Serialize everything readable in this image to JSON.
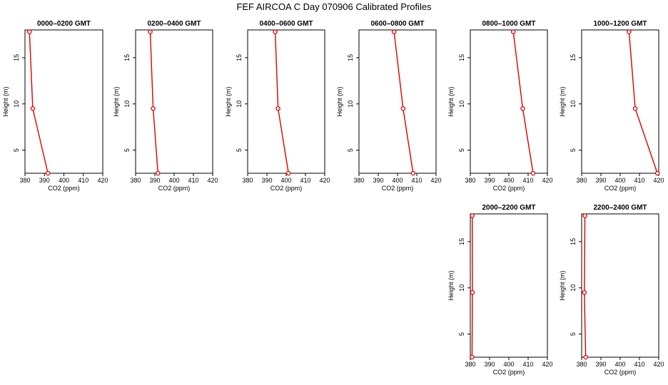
{
  "figure": {
    "title": "FEF AIRCOA C  Day 070906  Calibrated Profiles"
  },
  "chart_data": [
    {
      "type": "line",
      "title": "0000–0200 GMT",
      "xlabel": "CO2 (ppm)",
      "ylabel": "Height (m)",
      "xlim": [
        380,
        420
      ],
      "ylim": [
        2.5,
        18
      ],
      "xticks": [
        380,
        390,
        400,
        410,
        420
      ],
      "yticks": [
        5,
        10,
        15
      ],
      "grid": false,
      "series": [
        {
          "values": [
            [
              382.3,
              17.8
            ],
            [
              384.0,
              9.5
            ],
            [
              391.8,
              2.5
            ]
          ],
          "color": "#dd0000"
        }
      ]
    },
    {
      "type": "line",
      "title": "0200–0400 GMT",
      "xlabel": "CO2 (ppm)",
      "ylabel": "Height (m)",
      "xlim": [
        380,
        420
      ],
      "ylim": [
        2.5,
        18
      ],
      "xticks": [
        380,
        390,
        400,
        410,
        420
      ],
      "yticks": [
        5,
        10,
        15
      ],
      "grid": false,
      "series": [
        {
          "values": [
            [
              387.6,
              17.8
            ],
            [
              389.1,
              9.5
            ],
            [
              391.6,
              2.5
            ]
          ],
          "color": "#dd0000"
        }
      ]
    },
    {
      "type": "line",
      "title": "0400–0600 GMT",
      "xlabel": "CO2 (ppm)",
      "ylabel": "Height (m)",
      "xlim": [
        380,
        420
      ],
      "ylim": [
        2.5,
        18
      ],
      "xticks": [
        380,
        390,
        400,
        410,
        420
      ],
      "yticks": [
        5,
        10,
        15
      ],
      "grid": false,
      "series": [
        {
          "values": [
            [
              394.3,
              17.8
            ],
            [
              395.8,
              9.5
            ],
            [
              401.2,
              2.5
            ]
          ],
          "color": "#dd0000"
        }
      ]
    },
    {
      "type": "line",
      "title": "0600–0800 GMT",
      "xlabel": "CO2 (ppm)",
      "ylabel": "Height (m)",
      "xlim": [
        380,
        420
      ],
      "ylim": [
        2.5,
        18
      ],
      "xticks": [
        380,
        390,
        400,
        410,
        420
      ],
      "yticks": [
        5,
        10,
        15
      ],
      "grid": false,
      "series": [
        {
          "values": [
            [
              398.2,
              17.8
            ],
            [
              402.9,
              9.5
            ],
            [
              408.1,
              2.5
            ]
          ],
          "color": "#dd0000"
        }
      ]
    },
    {
      "type": "line",
      "title": "0800–1000 GMT",
      "xlabel": "CO2 (ppm)",
      "ylabel": "Height (m)",
      "xlim": [
        380,
        420
      ],
      "ylim": [
        2.5,
        18
      ],
      "xticks": [
        380,
        390,
        400,
        410,
        420
      ],
      "yticks": [
        5,
        10,
        15
      ],
      "grid": false,
      "series": [
        {
          "values": [
            [
              402.3,
              17.8
            ],
            [
              407.2,
              9.5
            ],
            [
              412.6,
              2.5
            ]
          ],
          "color": "#dd0000"
        }
      ]
    },
    {
      "type": "line",
      "title": "1000–1200 GMT",
      "xlabel": "CO2 (ppm)",
      "ylabel": "Height (m)",
      "xlim": [
        380,
        420
      ],
      "ylim": [
        2.5,
        18
      ],
      "xticks": [
        380,
        390,
        400,
        410,
        420
      ],
      "yticks": [
        5,
        10,
        15
      ],
      "grid": false,
      "series": [
        {
          "values": [
            [
              404.6,
              17.8
            ],
            [
              407.8,
              9.5
            ],
            [
              419.3,
              2.5
            ]
          ],
          "color": "#dd0000"
        }
      ]
    },
    {
      "type": "line",
      "title": "2000–2200 GMT",
      "xlabel": "CO2 (ppm)",
      "ylabel": "Height (m)",
      "xlim": [
        380,
        420
      ],
      "ylim": [
        2.5,
        18
      ],
      "xticks": [
        380,
        390,
        400,
        410,
        420
      ],
      "yticks": [
        5,
        10,
        15
      ],
      "grid": false,
      "series": [
        {
          "values": [
            [
              381.0,
              17.8
            ],
            [
              381.1,
              9.5
            ],
            [
              380.9,
              2.5
            ]
          ],
          "color": "#dd0000"
        }
      ]
    },
    {
      "type": "line",
      "title": "2200–2400 GMT",
      "xlabel": "CO2 (ppm)",
      "ylabel": "Height (m)",
      "xlim": [
        380,
        420
      ],
      "ylim": [
        2.5,
        18
      ],
      "xticks": [
        380,
        390,
        400,
        410,
        420
      ],
      "yticks": [
        5,
        10,
        15
      ],
      "grid": false,
      "series": [
        {
          "values": [
            [
              381.7,
              17.8
            ],
            [
              381.4,
              9.5
            ],
            [
              382.1,
              2.5
            ]
          ],
          "color": "#dd0000"
        }
      ]
    }
  ]
}
